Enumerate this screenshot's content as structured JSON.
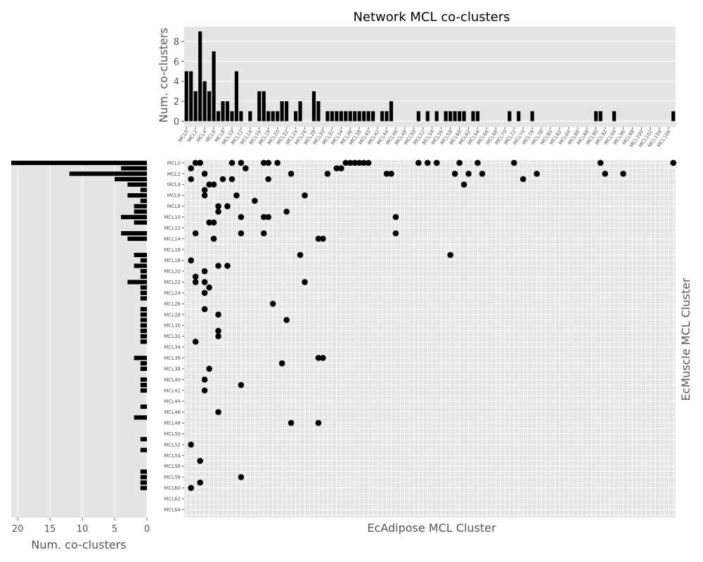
{
  "chart_data": {
    "type": "scatter",
    "title": "Network MCL co-clusters",
    "xlabel": "EcAdipose MCL Cluster",
    "ylabel": "EcMuscle MCL Cluster",
    "top_ylabel": "Num. co-clusters",
    "left_xlabel": "Num. co-clusters",
    "top_yticks": [
      "0",
      "2",
      "4",
      "6",
      "8"
    ],
    "top_ylim": [
      0,
      9.5
    ],
    "left_xticks": [
      "20",
      "15",
      "10",
      "5",
      "0"
    ],
    "left_xlim": [
      0,
      21
    ],
    "x_category_count": 108,
    "y_category_count": 66,
    "x_tick_labels": [
      "MCL0",
      "MCL2",
      "MCL4",
      "MCL6",
      "MCL8",
      "MCL10",
      "MCL12",
      "MCL14",
      "MCL16",
      "MCL18",
      "MCL20",
      "MCL22",
      "MCL24",
      "MCL26",
      "MCL28",
      "MCL30",
      "MCL32",
      "MCL34",
      "MCL36",
      "MCL38",
      "MCL40",
      "MCL42",
      "MCL44",
      "MCL46",
      "MCL48",
      "MCL50",
      "MCL52",
      "MCL54",
      "MCL56",
      "MCL58",
      "MCL60",
      "MCL62",
      "MCL64",
      "MCL66",
      "MCL68",
      "MCL70",
      "MCL72",
      "MCL74",
      "MCL76",
      "MCL78",
      "MCL80",
      "MCL82",
      "MCL84",
      "MCL86",
      "MCL88",
      "MCL90",
      "MCL92",
      "MCL94",
      "MCL96",
      "MCL98",
      "MCL100",
      "MCL102",
      "MCL104",
      "MCL106"
    ],
    "y_tick_labels": [
      "MCL0",
      "MCL2",
      "MCL4",
      "MCL6",
      "MCL8",
      "MCL10",
      "MCL12",
      "MCL14",
      "MCL16",
      "MCL18",
      "MCL20",
      "MCL22",
      "MCL24",
      "MCL26",
      "MCL28",
      "MCL30",
      "MCL32",
      "MCL34",
      "MCL36",
      "MCL38",
      "MCL40",
      "MCL42",
      "MCL44",
      "MCL46",
      "MCL48",
      "MCL50",
      "MCL52",
      "MCL54",
      "MCL56",
      "MCL58",
      "MCL60",
      "MCL62",
      "MCL64"
    ],
    "top_counts": [
      5,
      5,
      3,
      9,
      4,
      3,
      7,
      1,
      2,
      2,
      1,
      5,
      1,
      0,
      1,
      0,
      3,
      3,
      1,
      1,
      1,
      2,
      2,
      0,
      1,
      2,
      0,
      0,
      3,
      2,
      0,
      1,
      1,
      1,
      1,
      1,
      1,
      1,
      1,
      1,
      1,
      1,
      0,
      1,
      1,
      2,
      0,
      0,
      0,
      0,
      0,
      1,
      0,
      1,
      0,
      1,
      0,
      1,
      1,
      1,
      1,
      1,
      0,
      1,
      1,
      0,
      0,
      0,
      0,
      0,
      0,
      1,
      0,
      1,
      0,
      0,
      1,
      0,
      0,
      0,
      0,
      0,
      0,
      0,
      0,
      0,
      0,
      0,
      0,
      0,
      1,
      1,
      0,
      0,
      1,
      0,
      0,
      0,
      0,
      0,
      0,
      0,
      0,
      0,
      0,
      0,
      0,
      1
    ],
    "left_counts": [
      21,
      4,
      12,
      5,
      3,
      1,
      3,
      1,
      2,
      2,
      4,
      2,
      0,
      4,
      3,
      0,
      0,
      2,
      1,
      2,
      1,
      1,
      3,
      1,
      1,
      1,
      0,
      1,
      1,
      1,
      1,
      1,
      1,
      1,
      0,
      0,
      2,
      1,
      1,
      0,
      1,
      1,
      1,
      0,
      0,
      1,
      0,
      2,
      0,
      0,
      0,
      1,
      0,
      1,
      0,
      0,
      0,
      1,
      1,
      1,
      1,
      0,
      0,
      0,
      0,
      0
    ],
    "points": [
      [
        2,
        0
      ],
      [
        3,
        0
      ],
      [
        10,
        0
      ],
      [
        12,
        0
      ],
      [
        17,
        0
      ],
      [
        18,
        0
      ],
      [
        20,
        0
      ],
      [
        35,
        0
      ],
      [
        36,
        0
      ],
      [
        37,
        0
      ],
      [
        38,
        0
      ],
      [
        39,
        0
      ],
      [
        40,
        0
      ],
      [
        51,
        0
      ],
      [
        53,
        0
      ],
      [
        55,
        0
      ],
      [
        60,
        0
      ],
      [
        64,
        0
      ],
      [
        72,
        0
      ],
      [
        91,
        0
      ],
      [
        107,
        0
      ],
      [
        1,
        1
      ],
      [
        13,
        1
      ],
      [
        33,
        1
      ],
      [
        34,
        1
      ],
      [
        4,
        2
      ],
      [
        23,
        2
      ],
      [
        31,
        2
      ],
      [
        44,
        2
      ],
      [
        45,
        2
      ],
      [
        59,
        2
      ],
      [
        62,
        2
      ],
      [
        65,
        2
      ],
      [
        77,
        2
      ],
      [
        92,
        2
      ],
      [
        96,
        2
      ],
      [
        1,
        3
      ],
      [
        8,
        3
      ],
      [
        10,
        3
      ],
      [
        18,
        3
      ],
      [
        74,
        3
      ],
      [
        5,
        4
      ],
      [
        6,
        4
      ],
      [
        61,
        4
      ],
      [
        4,
        5
      ],
      [
        4,
        6
      ],
      [
        11,
        6
      ],
      [
        26,
        6
      ],
      [
        15,
        7
      ],
      [
        7,
        8
      ],
      [
        9,
        8
      ],
      [
        7,
        9
      ],
      [
        22,
        9
      ],
      [
        12,
        10
      ],
      [
        17,
        10
      ],
      [
        18,
        10
      ],
      [
        46,
        10
      ],
      [
        5,
        11
      ],
      [
        6,
        11
      ],
      [
        2,
        13
      ],
      [
        12,
        13
      ],
      [
        17,
        13
      ],
      [
        46,
        13
      ],
      [
        6,
        14
      ],
      [
        29,
        14
      ],
      [
        30,
        14
      ],
      [
        25,
        17
      ],
      [
        58,
        17
      ],
      [
        1,
        18
      ],
      [
        7,
        19
      ],
      [
        9,
        19
      ],
      [
        4,
        20
      ],
      [
        2,
        21
      ],
      [
        2,
        22
      ],
      [
        4,
        22
      ],
      [
        26,
        22
      ],
      [
        5,
        23
      ],
      [
        4,
        24
      ],
      [
        19,
        26
      ],
      [
        4,
        27
      ],
      [
        7,
        28
      ],
      [
        22,
        29
      ],
      [
        7,
        31
      ],
      [
        7,
        32
      ],
      [
        2,
        33
      ],
      [
        29,
        36
      ],
      [
        30,
        36
      ],
      [
        21,
        37
      ],
      [
        5,
        38
      ],
      [
        4,
        40
      ],
      [
        4,
        42
      ],
      [
        12,
        41
      ],
      [
        7,
        46
      ],
      [
        23,
        48
      ],
      [
        29,
        48
      ],
      [
        1,
        52
      ],
      [
        3,
        55
      ],
      [
        12,
        58
      ],
      [
        3,
        59
      ],
      [
        1,
        60
      ]
    ]
  }
}
